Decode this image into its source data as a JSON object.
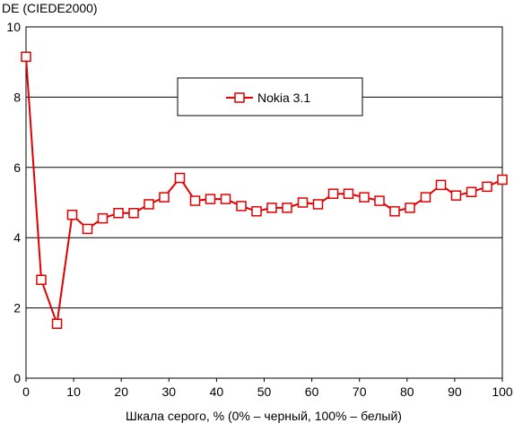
{
  "chart_data": {
    "type": "line",
    "title": "",
    "xlabel": "Шкала серого, % (0% – черный, 100% – белый)",
    "ylabel": "DE (CIEDE2000)",
    "xlim": [
      0,
      100
    ],
    "ylim": [
      0,
      10
    ],
    "x_ticks": [
      0,
      10,
      20,
      30,
      40,
      50,
      60,
      70,
      80,
      90,
      100
    ],
    "y_ticks": [
      0,
      2,
      4,
      6,
      8,
      10
    ],
    "grid": "horizontal",
    "legend_position": "top-center",
    "series": [
      {
        "name": "Nokia 3.1",
        "color": "#e00000",
        "marker": "square-open",
        "x": [
          0,
          3.2,
          6.5,
          9.7,
          12.9,
          16.1,
          19.4,
          22.6,
          25.8,
          29.0,
          32.3,
          35.5,
          38.7,
          41.9,
          45.2,
          48.4,
          51.6,
          54.8,
          58.1,
          61.3,
          64.5,
          67.7,
          71.0,
          74.2,
          77.4,
          80.6,
          83.9,
          87.1,
          90.3,
          93.5,
          96.8,
          100
        ],
        "y": [
          9.15,
          2.8,
          1.55,
          4.65,
          4.25,
          4.55,
          4.7,
          4.7,
          4.95,
          5.15,
          5.7,
          5.05,
          5.1,
          5.1,
          4.9,
          4.75,
          4.85,
          4.85,
          5.0,
          4.95,
          5.25,
          5.25,
          5.15,
          5.05,
          4.75,
          4.85,
          5.15,
          5.5,
          5.2,
          5.3,
          5.45,
          5.65
        ]
      }
    ]
  }
}
